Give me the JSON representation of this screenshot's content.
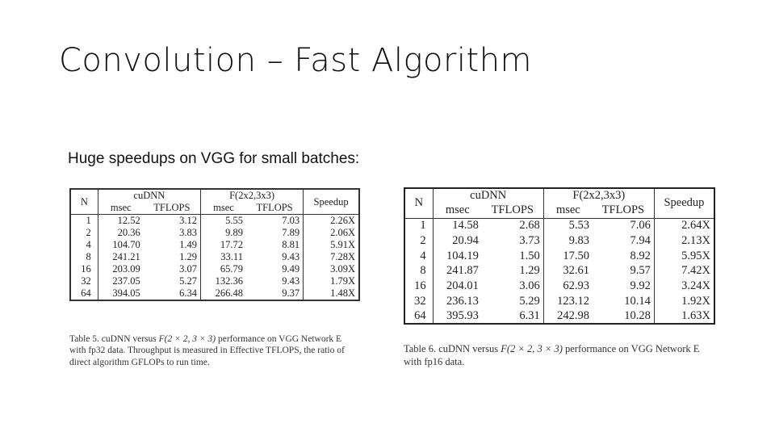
{
  "slide": {
    "title": "Convolution – Fast Algorithm",
    "subtitle": "Huge speedups on VGG for small batches:"
  },
  "table5": {
    "headers": {
      "n": "N",
      "cudnn": "cuDNN",
      "fast": "F(2x2,3x3)",
      "speedup": "Speedup",
      "msec": "msec",
      "tflops": "TFLOPS"
    },
    "rows": [
      [
        "1",
        "12.52",
        "3.12",
        "5.55",
        "7.03",
        "2.26X"
      ],
      [
        "2",
        "20.36",
        "3.83",
        "9.89",
        "7.89",
        "2.06X"
      ],
      [
        "4",
        "104.70",
        "1.49",
        "17.72",
        "8.81",
        "5.91X"
      ],
      [
        "8",
        "241.21",
        "1.29",
        "33.11",
        "9.43",
        "7.28X"
      ],
      [
        "16",
        "203.09",
        "3.07",
        "65.79",
        "9.49",
        "3.09X"
      ],
      [
        "32",
        "237.05",
        "5.27",
        "132.36",
        "9.43",
        "1.79X"
      ],
      [
        "64",
        "394.05",
        "6.34",
        "266.48",
        "9.37",
        "1.48X"
      ]
    ],
    "caption": {
      "before": "Table 5. cuDNN versus ",
      "math": "F(2 × 2, 3 × 3)",
      "after": " performance on VGG Network E with fp32 data. Throughput is measured in Effective TFLOPS, the ratio of direct algorithm GFLOPs to run time."
    }
  },
  "table6": {
    "headers": {
      "n": "N",
      "cudnn": "cuDNN",
      "fast": "F(2x2,3x3)",
      "speedup": "Speedup",
      "msec": "msec",
      "tflops": "TFLOPS"
    },
    "rows": [
      [
        "1",
        "14.58",
        "2.68",
        "5.53",
        "7.06",
        "2.64X"
      ],
      [
        "2",
        "20.94",
        "3.73",
        "9.83",
        "7.94",
        "2.13X"
      ],
      [
        "4",
        "104.19",
        "1.50",
        "17.50",
        "8.92",
        "5.95X"
      ],
      [
        "8",
        "241.87",
        "1.29",
        "32.61",
        "9.57",
        "7.42X"
      ],
      [
        "16",
        "204.01",
        "3.06",
        "62.93",
        "9.92",
        "3.24X"
      ],
      [
        "32",
        "236.13",
        "5.29",
        "123.12",
        "10.14",
        "1.92X"
      ],
      [
        "64",
        "395.93",
        "6.31",
        "242.98",
        "10.28",
        "1.63X"
      ]
    ],
    "caption": {
      "before": "Table 6. cuDNN versus ",
      "math": "F(2 × 2, 3 × 3)",
      "after": " performance on VGG Network E with fp16 data."
    }
  }
}
